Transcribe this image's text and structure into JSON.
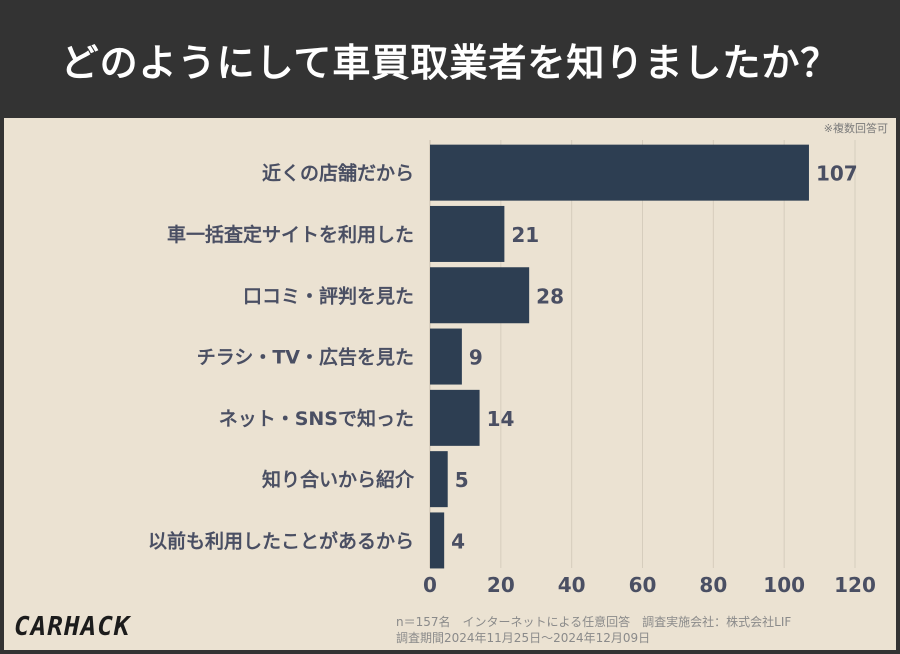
{
  "title": "どのようにして車買取業者を知りましたか？",
  "note": "※複数回答可",
  "footer": {
    "line1": "n＝157名　インターネットによる任意回答　調査実施会社：株式会社LIF",
    "line2": "調査期間2024年11月25日〜2024年12月09日"
  },
  "logo": "CARHACK",
  "chart_data": {
    "type": "bar",
    "orientation": "horizontal",
    "categories": [
      "近くの店舗だから",
      "車一括査定サイトを利用した",
      "口コミ・評判を見た",
      "チラシ・TV・広告を見た",
      "ネット・SNSで知った",
      "知り合いから紹介",
      "以前も利用したことがあるから"
    ],
    "values": [
      107,
      21,
      28,
      9,
      14,
      5,
      4
    ],
    "xlim": [
      0,
      120
    ],
    "xticks": [
      0,
      20,
      40,
      60,
      80,
      100,
      120
    ],
    "grid": true,
    "bar_color": "#2d3e52"
  }
}
